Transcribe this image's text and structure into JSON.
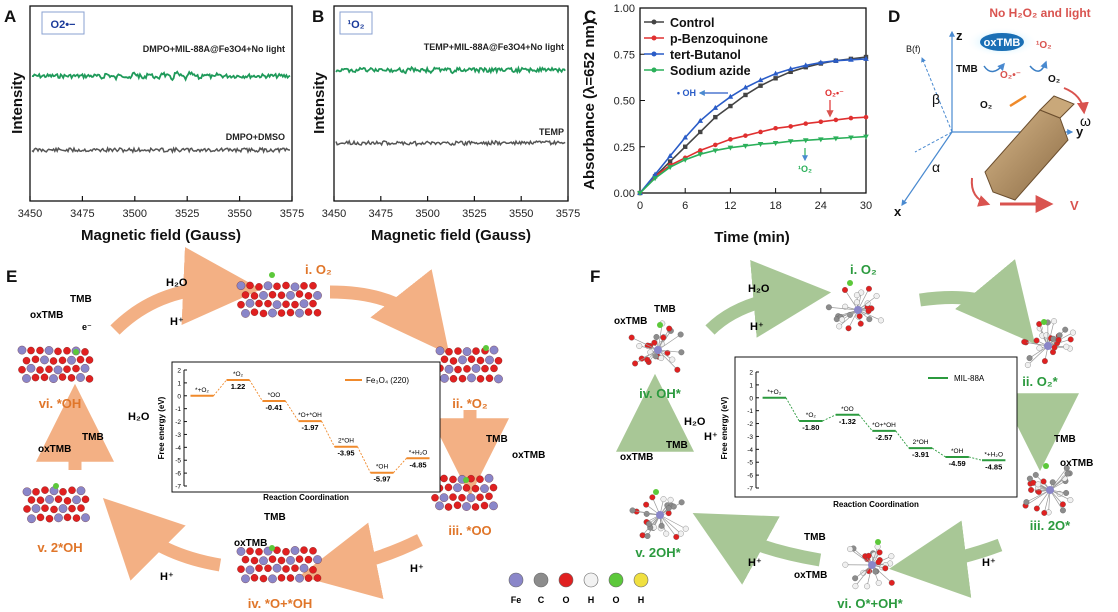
{
  "panel_labels": [
    "A",
    "B",
    "C",
    "D",
    "E",
    "F"
  ],
  "chart_data": [
    {
      "id": "A",
      "type": "line",
      "badge": "O2•−",
      "xlabel": "Magnetic field (Gauss)",
      "ylabel": "Intensity",
      "xlim": [
        3450,
        3575
      ],
      "xticks": [
        3450,
        3475,
        3500,
        3525,
        3550,
        3575
      ],
      "series": [
        {
          "name": "DMPO+MIL-88A@Fe3O4+No light",
          "color": "#1f9a5a",
          "kind": "epr-signal"
        },
        {
          "name": "DMPO+DMSO",
          "color": "#555555",
          "kind": "baseline"
        }
      ]
    },
    {
      "id": "B",
      "type": "line",
      "badge": "¹O₂",
      "xlabel": "Magnetic field (Gauss)",
      "ylabel": "Intensity",
      "xlim": [
        3450,
        3575
      ],
      "xticks": [
        3450,
        3475,
        3500,
        3525,
        3550,
        3575
      ],
      "series": [
        {
          "name": "TEMP+MIL-88A@Fe3O4+No light",
          "color": "#1f9a5a",
          "kind": "epr-signal"
        },
        {
          "name": "TEMP",
          "color": "#555555",
          "kind": "baseline"
        }
      ]
    },
    {
      "id": "C",
      "type": "line",
      "xlabel": "Time (min)",
      "ylabel": "Absorbance (λ=652 nm)",
      "xlim": [
        0,
        30
      ],
      "ylim": [
        0,
        1.0
      ],
      "xticks": [
        0,
        6,
        12,
        18,
        24,
        30
      ],
      "yticks": [
        "0.00",
        "0.25",
        "0.50",
        "0.75",
        "1.00"
      ],
      "x": [
        0,
        2,
        4,
        6,
        8,
        10,
        12,
        14,
        16,
        18,
        20,
        22,
        24,
        26,
        28,
        30
      ],
      "series": [
        {
          "name": "Control",
          "color": "#444444",
          "marker": "square",
          "values": [
            0.0,
            0.09,
            0.17,
            0.25,
            0.33,
            0.41,
            0.47,
            0.53,
            0.58,
            0.62,
            0.655,
            0.68,
            0.7,
            0.715,
            0.725,
            0.735
          ]
        },
        {
          "name": "p-Benzoquinone",
          "color": "#e03030",
          "marker": "circle",
          "values": [
            0.0,
            0.09,
            0.15,
            0.19,
            0.23,
            0.26,
            0.29,
            0.31,
            0.33,
            0.35,
            0.36,
            0.375,
            0.385,
            0.395,
            0.405,
            0.41
          ]
        },
        {
          "name": "tert-Butanol",
          "color": "#2a5cc7",
          "marker": "triangle",
          "values": [
            0.0,
            0.1,
            0.2,
            0.3,
            0.39,
            0.46,
            0.52,
            0.57,
            0.61,
            0.645,
            0.67,
            0.69,
            0.705,
            0.715,
            0.72,
            0.725
          ]
        },
        {
          "name": "Sodium azide",
          "color": "#2bb05a",
          "marker": "triangle-down",
          "values": [
            0.0,
            0.08,
            0.14,
            0.18,
            0.21,
            0.23,
            0.245,
            0.255,
            0.265,
            0.27,
            0.28,
            0.285,
            0.29,
            0.295,
            0.3,
            0.305
          ]
        }
      ],
      "annotations": [
        "• OH",
        "O₂•⁻",
        "¹O₂"
      ]
    },
    {
      "id": "E",
      "type": "line",
      "legend": "Fe₃O₄ (220)",
      "xlabel": "Reaction Coordination",
      "ylabel": "Free energy (eV)",
      "ylim": [
        -7,
        2
      ],
      "yticks": [
        "2",
        "1",
        "0",
        "-1",
        "-2",
        "-3",
        "-4",
        "-5",
        "-6",
        "-7"
      ],
      "steps": [
        {
          "state": "*+O₂",
          "value": 0.0,
          "label": ""
        },
        {
          "state": "*O₂",
          "value": 1.22,
          "label": "1.22"
        },
        {
          "state": "*OO",
          "value": -0.41,
          "label": "-0.41"
        },
        {
          "state": "*O+*OH",
          "value": -1.97,
          "label": "-1.97"
        },
        {
          "state": "2*OH",
          "value": -3.95,
          "label": "-3.95"
        },
        {
          "state": "*OH",
          "value": -5.97,
          "label": "-5.97"
        },
        {
          "state": "*+H₂O",
          "value": -4.85,
          "label": "-4.85"
        }
      ],
      "color": "#f08a2c"
    },
    {
      "id": "F",
      "type": "line",
      "legend": "MIL-88A",
      "xlabel": "Reaction Coordination",
      "ylabel": "Free energy (eV)",
      "ylim": [
        -7,
        2
      ],
      "yticks": [
        "2",
        "1",
        "0",
        "-1",
        "-2",
        "-3",
        "-4",
        "-5",
        "-6",
        "-7"
      ],
      "steps": [
        {
          "state": "*+O₂",
          "value": 0.0,
          "label": ""
        },
        {
          "state": "*O₂",
          "value": -1.8,
          "label": "-1.80"
        },
        {
          "state": "*OO",
          "value": -1.32,
          "label": "-1.32"
        },
        {
          "state": "*O+*OH",
          "value": -2.57,
          "label": "-2.57"
        },
        {
          "state": "2*OH",
          "value": -3.91,
          "label": "-3.91"
        },
        {
          "state": "*OH",
          "value": -4.59,
          "label": "-4.59"
        },
        {
          "state": "*+H₂O",
          "value": -4.85,
          "label": "-4.85"
        }
      ],
      "color": "#2b9a3e"
    }
  ],
  "panel_d": {
    "title": "No H₂O₂ and light",
    "labels": {
      "oxtmb": "oxTMB",
      "tmb": "TMB",
      "o2rad": "O₂•⁻",
      "singlet": "¹O₂",
      "o2a": "O₂",
      "o2b": "O₂",
      "bf": "B(f)",
      "z": "z",
      "y": "y",
      "x": "x",
      "beta": "β",
      "alpha": "α",
      "omega": "ω",
      "v": "V"
    }
  },
  "panel_e": {
    "states": [
      "i. O₂",
      "ii. *O₂",
      "iii. *OO",
      "iv. *O+*OH",
      "v. 2*OH",
      "vi. *OH"
    ],
    "species": {
      "h2o": "H₂O",
      "hplus": "H⁺",
      "tmb": "TMB",
      "oxtmb": "oxTMB",
      "e": "e⁻"
    }
  },
  "panel_f": {
    "states": [
      "i. O₂",
      "ii. O₂*",
      "iii. 2O*",
      "vi. O*+OH*",
      "v. 2OH*",
      "iv. OH*"
    ]
  },
  "atom_legend": [
    {
      "el": "Fe",
      "color": "#8a86c9"
    },
    {
      "el": "C",
      "color": "#8c8c8c"
    },
    {
      "el": "O",
      "color": "#e02020"
    },
    {
      "el": "H",
      "color": "#f2f2f2"
    },
    {
      "el": "O",
      "color": "#5cc83a"
    },
    {
      "el": "H",
      "color": "#f0e040"
    }
  ]
}
